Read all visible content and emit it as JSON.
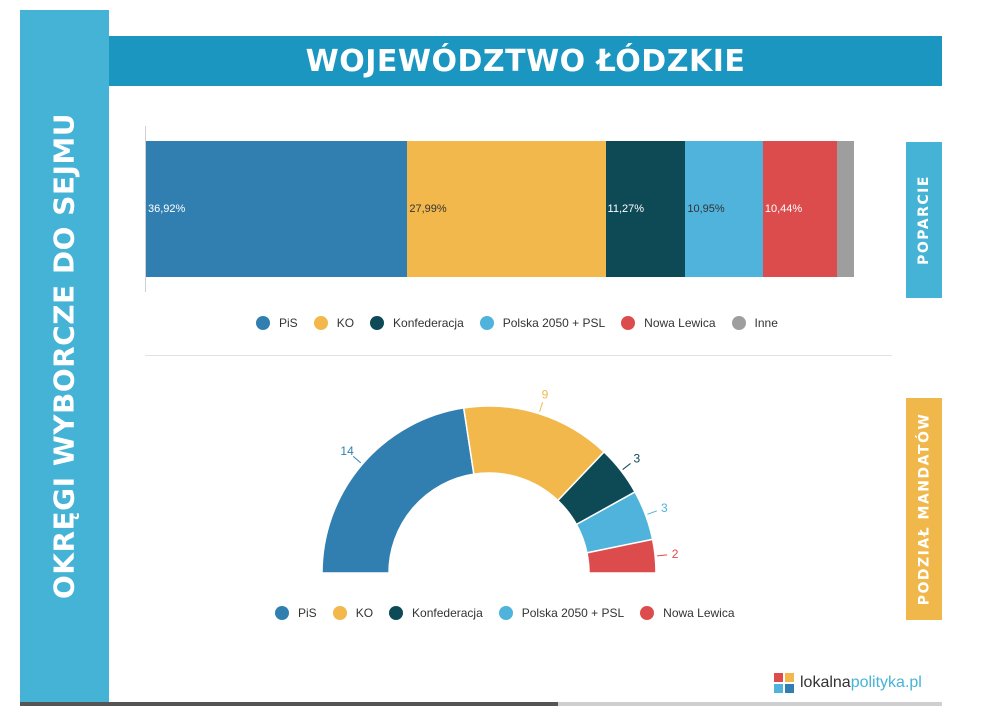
{
  "side_title": "OKRĘGI WYBORCZE DO SEJMU",
  "header_title": "WOJEWÓDZTWO ŁÓDZKIE",
  "tabs": {
    "support": "POPARCIE",
    "seats": "PODZIAŁ MANDATÓW"
  },
  "logo": {
    "part1": "lokalna",
    "part2": "polityka.pl"
  },
  "chart_data": [
    {
      "type": "bar",
      "orientation": "horizontal-stacked",
      "series": [
        {
          "name": "PiS",
          "value": 36.92,
          "label": "36,92%",
          "color": "#317fb1",
          "label_color": "#ffffff"
        },
        {
          "name": "KO",
          "value": 27.99,
          "label": "27,99%",
          "color": "#f2b84b",
          "label_color": "#333333"
        },
        {
          "name": "Konfederacja",
          "value": 11.27,
          "label": "11,27%",
          "color": "#0d4a55",
          "label_color": "#ffffff"
        },
        {
          "name": "Polska 2050 + PSL",
          "value": 10.95,
          "label": "10,95%",
          "color": "#4fb3dc",
          "label_color": "#333333"
        },
        {
          "name": "Nowa Lewica",
          "value": 10.44,
          "label": "10,44%",
          "color": "#dd4c4c",
          "label_color": "#ffffff"
        },
        {
          "name": "Inne",
          "value": 2.43,
          "label": "",
          "color": "#9e9e9e",
          "label_color": "#ffffff"
        }
      ],
      "legend": [
        "PiS",
        "KO",
        "Konfederacja",
        "Polska 2050 + PSL",
        "Nowa Lewica",
        "Inne"
      ],
      "legend_position": "bottom"
    },
    {
      "type": "pie",
      "variant": "half-donut",
      "series": [
        {
          "name": "PiS",
          "value": 14,
          "color": "#317fb1"
        },
        {
          "name": "KO",
          "value": 9,
          "color": "#f2b84b"
        },
        {
          "name": "Konfederacja",
          "value": 3,
          "color": "#0d4a55"
        },
        {
          "name": "Polska 2050 + PSL",
          "value": 3,
          "color": "#4fb3dc"
        },
        {
          "name": "Nowa Lewica",
          "value": 2,
          "color": "#dd4c4c"
        }
      ],
      "legend": [
        "PiS",
        "KO",
        "Konfederacja",
        "Polska 2050 + PSL",
        "Nowa Lewica"
      ],
      "legend_position": "bottom"
    }
  ]
}
